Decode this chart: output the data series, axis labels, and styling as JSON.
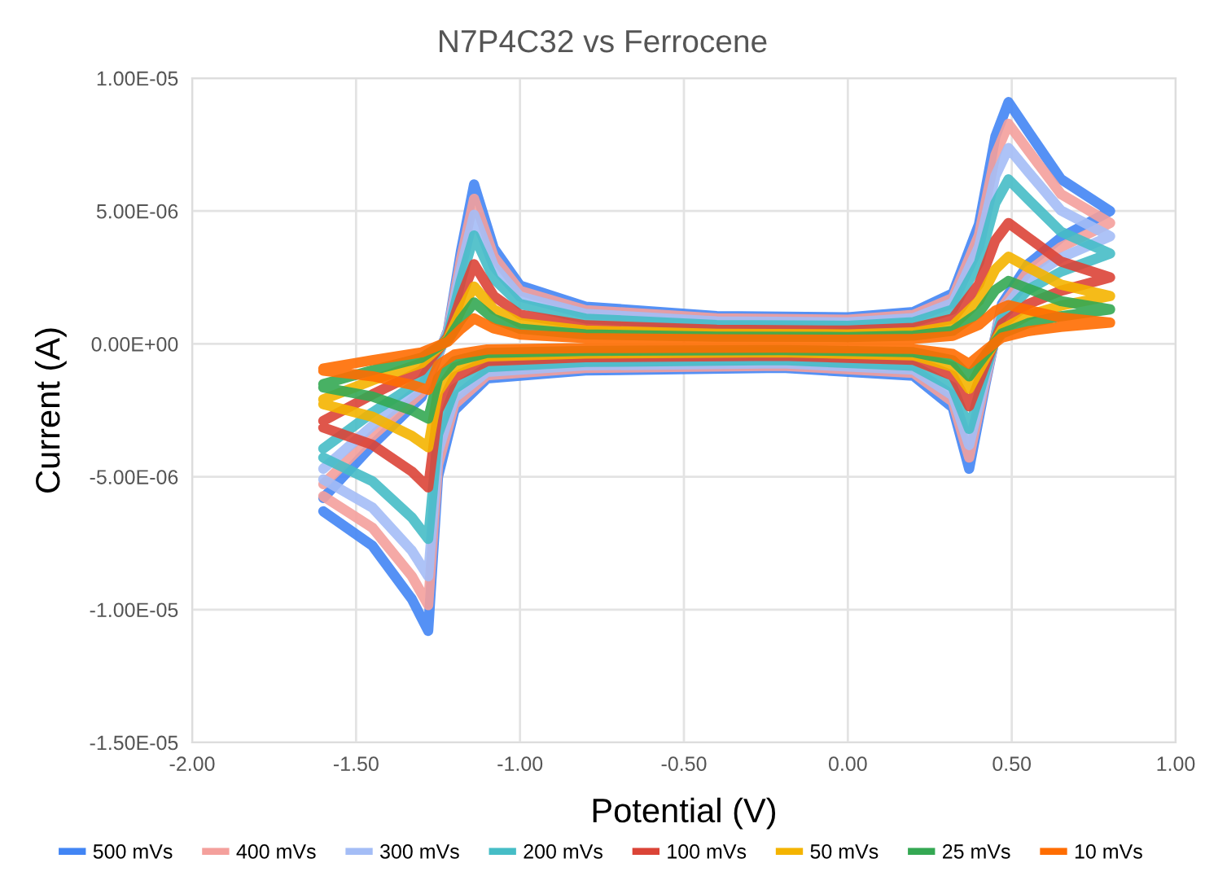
{
  "chart_data": {
    "type": "line",
    "title": "N7P4C32 vs Ferrocene",
    "xlabel": "Potential (V)",
    "ylabel": "Current (A)",
    "x": [
      -1.6,
      -1.45,
      -1.3,
      -1.22,
      -1.18,
      -1.14,
      -1.08,
      -1.0,
      -0.8,
      -0.4,
      0.0,
      0.2,
      0.32,
      0.4,
      0.45,
      0.49,
      0.55,
      0.65,
      0.8,
      0.65,
      0.55,
      0.47,
      0.42,
      0.37,
      0.32,
      0.2,
      -0.2,
      -0.8,
      -1.1,
      -1.2,
      -1.25,
      -1.28,
      -1.33,
      -1.45,
      -1.6
    ],
    "series": [
      {
        "name": "500 mVs",
        "color": "#4285f4",
        "values": [
          -5.8e-06,
          -3.8e-06,
          -2e-06,
          5e-07,
          3.5e-06,
          6e-06,
          3.6e-06,
          2.2e-06,
          1.4e-06,
          1.05e-06,
          1e-06,
          1.2e-06,
          1.9e-06,
          4.5e-06,
          7.8e-06,
          9.1e-06,
          8e-06,
          6.2e-06,
          5e-06,
          4e-06,
          3e-06,
          1.5e-06,
          -1.5e-06,
          -4.7e-06,
          -2.4e-06,
          -1.2e-06,
          -9e-07,
          -1e-06,
          -1.3e-06,
          -2.5e-06,
          -5e-06,
          -1.08e-05,
          -9.6e-06,
          -7.6e-06,
          -6.3e-06
        ]
      },
      {
        "name": "400 mVs",
        "color": "#f4a09c",
        "values": [
          -5.28e-06,
          -3.46e-06,
          -1.82e-06,
          4.6e-07,
          3.19e-06,
          5.46e-06,
          3.28e-06,
          2e-06,
          1.27e-06,
          9.6e-07,
          9.1e-07,
          1.09e-06,
          1.73e-06,
          4.1e-06,
          7.1e-06,
          8.28e-06,
          7.28e-06,
          5.64e-06,
          4.55e-06,
          3.64e-06,
          2.73e-06,
          1.37e-06,
          -1.37e-06,
          -4.28e-06,
          -2.18e-06,
          -1.09e-06,
          -8.2e-07,
          -9.1e-07,
          -1.18e-06,
          -2.28e-06,
          -4.55e-06,
          -9.83e-06,
          -8.74e-06,
          -6.92e-06,
          -5.73e-06
        ]
      },
      {
        "name": "300 mVs",
        "color": "#a4bdf6",
        "values": [
          -4.7e-06,
          -3.08e-06,
          -1.62e-06,
          4.1e-07,
          2.84e-06,
          4.86e-06,
          2.92e-06,
          1.78e-06,
          1.13e-06,
          8.5e-07,
          8.1e-07,
          9.7e-07,
          1.54e-06,
          3.65e-06,
          6.32e-06,
          7.37e-06,
          6.48e-06,
          5.02e-06,
          4.05e-06,
          3.24e-06,
          2.43e-06,
          1.22e-06,
          -1.22e-06,
          -3.81e-06,
          -1.94e-06,
          -9.7e-07,
          -7.3e-07,
          -8.1e-07,
          -1.05e-06,
          -2.03e-06,
          -4.05e-06,
          -8.75e-06,
          -7.78e-06,
          -6.16e-06,
          -5.1e-06
        ]
      },
      {
        "name": "200 mVs",
        "color": "#46bdc6",
        "values": [
          -3.94e-06,
          -2.58e-06,
          -1.36e-06,
          3.4e-07,
          2.38e-06,
          4.08e-06,
          2.45e-06,
          1.5e-06,
          9.5e-07,
          7.1e-07,
          6.8e-07,
          8.2e-07,
          1.29e-06,
          3.06e-06,
          5.3e-06,
          6.19e-06,
          5.44e-06,
          4.22e-06,
          3.4e-06,
          2.72e-06,
          2.04e-06,
          1.02e-06,
          -1.02e-06,
          -3.2e-06,
          -1.63e-06,
          -8.2e-07,
          -6.1e-07,
          -6.8e-07,
          -8.8e-07,
          -1.7e-06,
          -3.4e-06,
          -7.34e-06,
          -6.53e-06,
          -5.17e-06,
          -4.28e-06
        ]
      },
      {
        "name": "100 mVs",
        "color": "#db4437",
        "values": [
          -2.9e-06,
          -1.9e-06,
          -1e-06,
          2.5e-07,
          1.75e-06,
          3e-06,
          1.8e-06,
          1.1e-06,
          7e-07,
          5.3e-07,
          5e-07,
          6e-07,
          9.5e-07,
          2.25e-06,
          3.9e-06,
          4.55e-06,
          4e-06,
          3.1e-06,
          2.5e-06,
          2e-06,
          1.5e-06,
          7.5e-07,
          -7.5e-07,
          -2.35e-06,
          -1.2e-06,
          -6e-07,
          -4.5e-07,
          -5e-07,
          -6.5e-07,
          -1.25e-06,
          -2.5e-06,
          -5.4e-06,
          -4.8e-06,
          -3.8e-06,
          -3.15e-06
        ]
      },
      {
        "name": "50 mVs",
        "color": "#f4b400",
        "values": [
          -2.09e-06,
          -1.37e-06,
          -7.2e-07,
          1.8e-07,
          1.26e-06,
          2.16e-06,
          1.3e-06,
          7.9e-07,
          5e-07,
          3.8e-07,
          3.6e-07,
          4.3e-07,
          6.8e-07,
          1.62e-06,
          2.81e-06,
          3.28e-06,
          2.88e-06,
          2.23e-06,
          1.8e-06,
          1.44e-06,
          1.08e-06,
          5.4e-07,
          -5.4e-07,
          -1.69e-06,
          -8.6e-07,
          -4.3e-07,
          -3.2e-07,
          -3.6e-07,
          -4.7e-07,
          -9e-07,
          -1.8e-06,
          -3.89e-06,
          -3.46e-06,
          -2.74e-06,
          -2.27e-06
        ]
      },
      {
        "name": "25 mVs",
        "color": "#34a853",
        "values": [
          -1.51e-06,
          -9.9e-07,
          -5.2e-07,
          1.3e-07,
          9.1e-07,
          1.56e-06,
          9.4e-07,
          5.7e-07,
          3.6e-07,
          2.7e-07,
          2.6e-07,
          3.1e-07,
          4.9e-07,
          1.17e-06,
          2.03e-06,
          2.37e-06,
          2.08e-06,
          1.61e-06,
          1.3e-06,
          1.04e-06,
          7.8e-07,
          3.9e-07,
          -3.9e-07,
          -1.22e-06,
          -6.2e-07,
          -3.1e-07,
          -2.3e-07,
          -2.6e-07,
          -3.4e-07,
          -6.5e-07,
          -1.3e-06,
          -2.81e-06,
          -2.5e-06,
          -1.98e-06,
          -1.64e-06
        ]
      },
      {
        "name": "10 mVs",
        "color": "#ff6d01",
        "values": [
          -9.3e-07,
          -6.1e-07,
          -3.2e-07,
          8e-08,
          5.6e-07,
          9.6e-07,
          5.8e-07,
          3.5e-07,
          2.2e-07,
          1.7e-07,
          1.6e-07,
          1.9e-07,
          3e-07,
          7.2e-07,
          1.25e-06,
          1.46e-06,
          1.28e-06,
          9.9e-07,
          8e-07,
          6.4e-07,
          4.8e-07,
          2.4e-07,
          -2.4e-07,
          -7.5e-07,
          -3.8e-07,
          -1.9e-07,
          -1.4e-07,
          -1.6e-07,
          -2.1e-07,
          -4e-07,
          -8e-07,
          -1.73e-06,
          -1.54e-06,
          -1.22e-06,
          -1.01e-06
        ]
      }
    ],
    "xlim": [
      -2,
      1
    ],
    "xticks": [
      {
        "value": -2,
        "label": "-2.00"
      },
      {
        "value": -1.5,
        "label": "-1.50"
      },
      {
        "value": -1,
        "label": "-1.00"
      },
      {
        "value": -0.5,
        "label": "-0.50"
      },
      {
        "value": 0,
        "label": "0.00"
      },
      {
        "value": 0.5,
        "label": "0.50"
      },
      {
        "value": 1,
        "label": "1.00"
      }
    ],
    "ylim": [
      -1.5e-05,
      1e-05
    ],
    "yticks": [
      {
        "value": -1.5e-05,
        "label": "-1.50E-05"
      },
      {
        "value": -1e-05,
        "label": "-1.00E-05"
      },
      {
        "value": -5e-06,
        "label": "-5.00E-06"
      },
      {
        "value": 0,
        "label": "0.00E+00"
      },
      {
        "value": 5e-06,
        "label": "5.00E-06"
      },
      {
        "value": 1e-05,
        "label": "1.00E-05"
      }
    ],
    "grid": true,
    "legend": "bottom",
    "line_style": "solid"
  }
}
